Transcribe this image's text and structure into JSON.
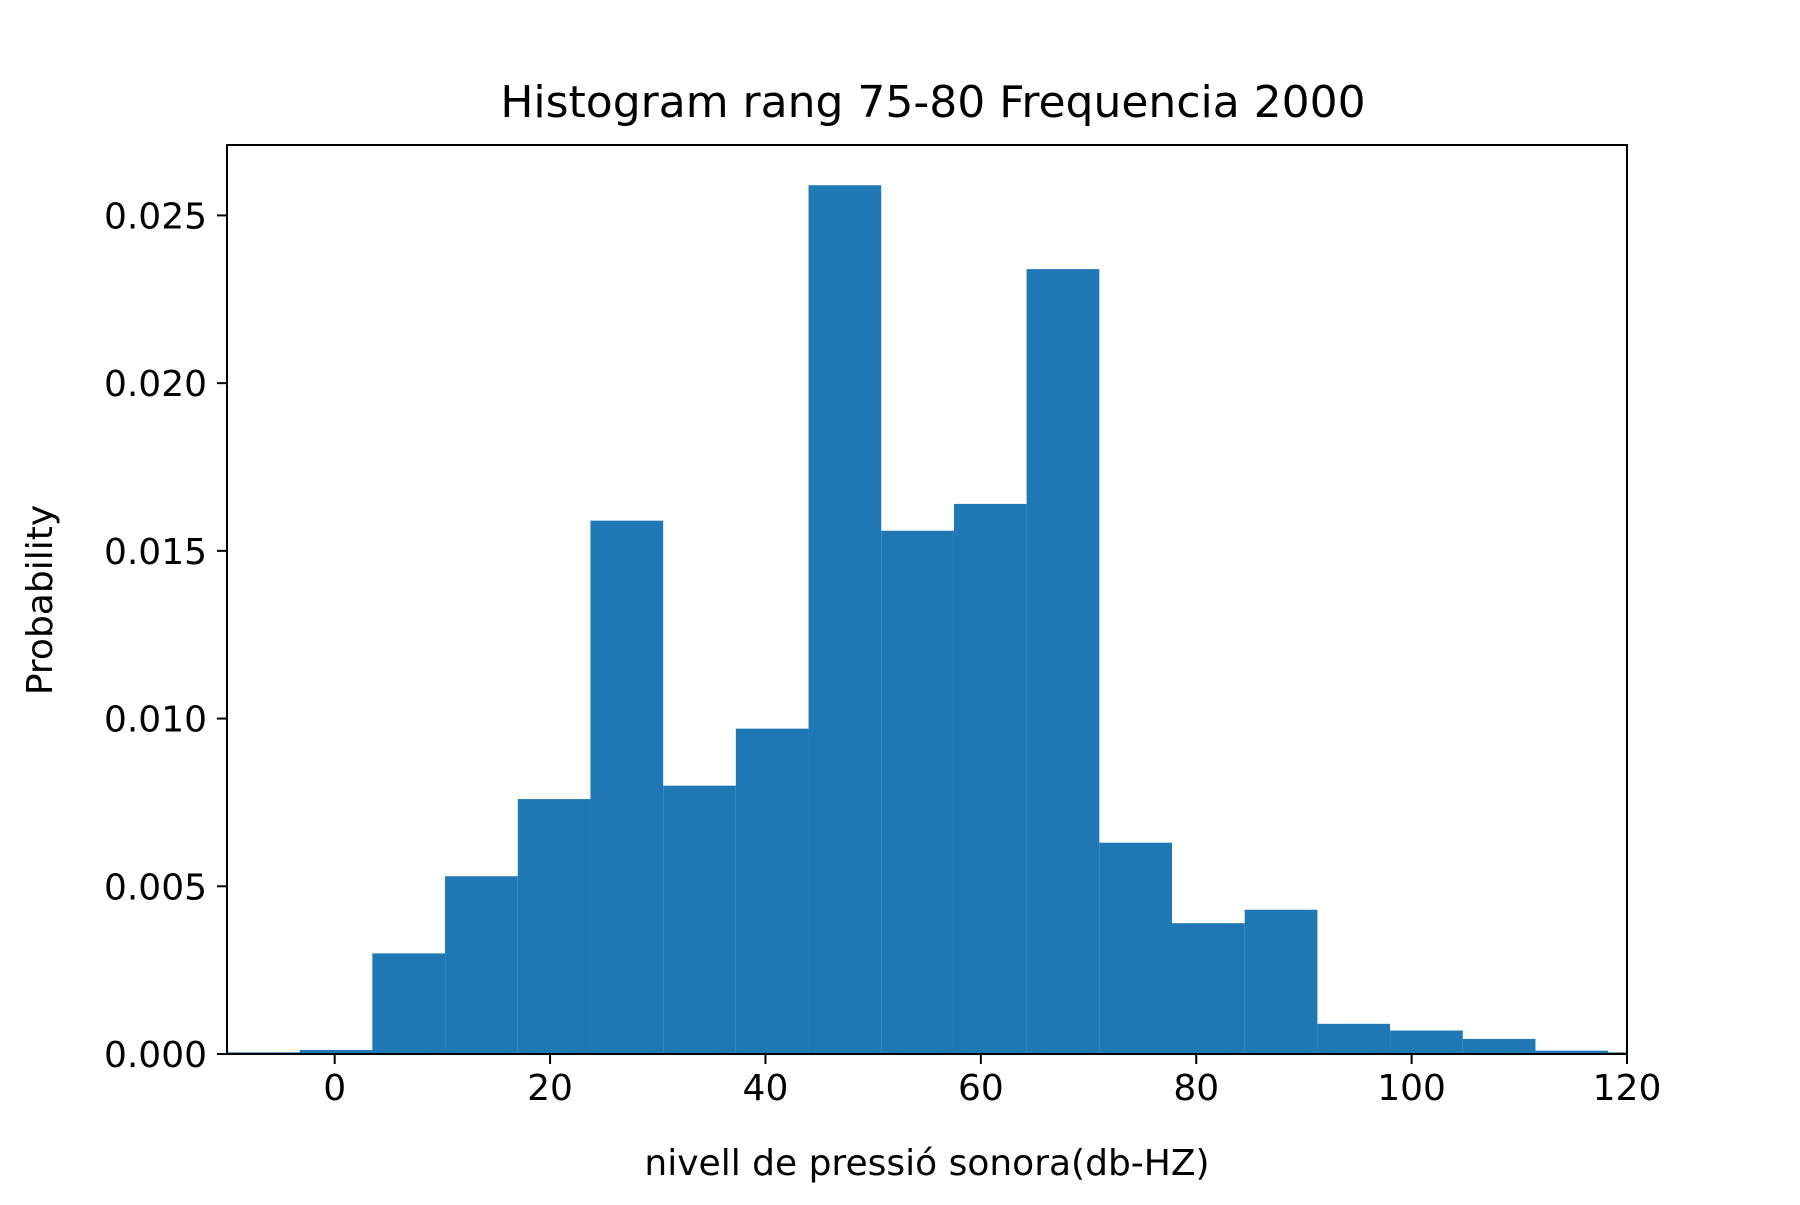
{
  "chart_data": {
    "type": "bar",
    "title": "Histogram rang 75-80 Frequencia 2000",
    "xlabel": "nivell de pressió sonora(db-HZ)",
    "ylabel": "Probability",
    "xlim": [
      -10,
      120
    ],
    "ylim": [
      0,
      0.0271
    ],
    "xticks": [
      0,
      20,
      40,
      60,
      80,
      100,
      120
    ],
    "xtick_labels": [
      "0",
      "20",
      "40",
      "60",
      "80",
      "100",
      "120"
    ],
    "yticks": [
      0,
      0.005,
      0.01,
      0.015,
      0.02,
      0.025
    ],
    "ytick_labels": [
      "0.000",
      "0.005",
      "0.010",
      "0.015",
      "0.020",
      "0.025"
    ],
    "bin_edges": [
      -10.0,
      -3.25,
      3.5,
      10.25,
      17.0,
      23.75,
      30.5,
      37.25,
      44.0,
      50.75,
      57.5,
      64.25,
      71.0,
      77.75,
      84.5,
      91.25,
      98.0,
      104.75,
      111.5,
      118.25,
      125.0
    ],
    "values": [
      5e-05,
      0.00012,
      0.003,
      0.0053,
      0.0076,
      0.0159,
      0.008,
      0.0097,
      0.0259,
      0.0156,
      0.0164,
      0.0234,
      0.0063,
      0.0039,
      0.0043,
      0.0009,
      0.0007,
      0.00045,
      0.0001,
      5e-05
    ],
    "grid": false,
    "colors": {
      "bars": "#1f77b4"
    }
  }
}
